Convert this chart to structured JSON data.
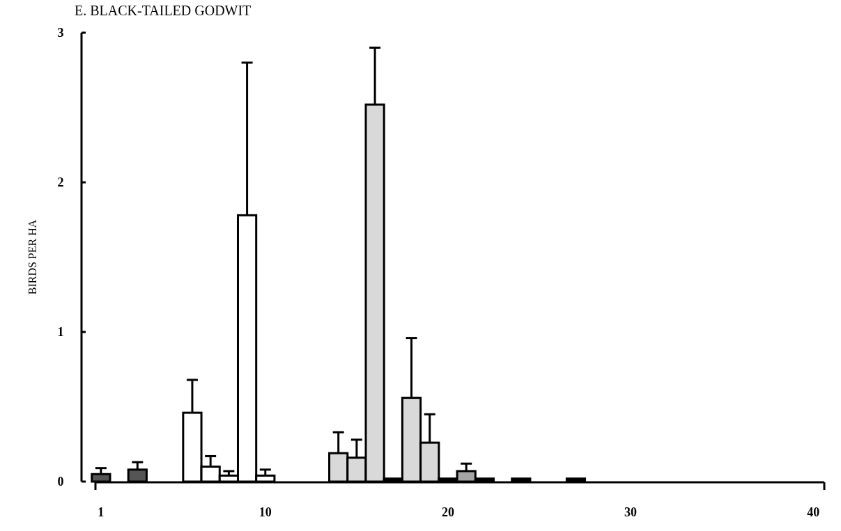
{
  "chart_data": {
    "type": "bar",
    "title": "E. BLACK-TAILED GODWIT",
    "ylabel": "BIRDS PER HA",
    "xlim": [
      0.7,
      40.6
    ],
    "xticks": [
      1,
      10,
      20,
      30,
      40
    ],
    "ylim": [
      0,
      3
    ],
    "yticks": [
      0,
      1,
      2,
      3
    ],
    "grid": false,
    "series": [
      {
        "color": "#555555",
        "x": [
          1,
          3
        ],
        "values": [
          0.05,
          0.08
        ],
        "errors": [
          [
            0.05,
            0.09
          ],
          [
            0.08,
            0.13
          ]
        ]
      },
      {
        "color": "#ffffff",
        "x": [
          6,
          7,
          8,
          9,
          10
        ],
        "values": [
          0.46,
          0.1,
          0.04,
          1.78,
          0.04
        ],
        "errors": [
          [
            0.46,
            0.68
          ],
          [
            0.1,
            0.17
          ],
          [
            0.04,
            0.07
          ],
          [
            1.78,
            2.8
          ],
          [
            0.04,
            0.08
          ]
        ]
      },
      {
        "color": "#d9d9d9",
        "x": [
          14,
          15,
          16,
          18,
          19
        ],
        "values": [
          0.19,
          0.16,
          2.52,
          0.56,
          0.26
        ],
        "errors": [
          [
            0.19,
            0.33
          ],
          [
            0.16,
            0.28
          ],
          [
            2.52,
            2.9
          ],
          [
            0.56,
            0.96
          ],
          [
            0.26,
            0.45
          ]
        ]
      },
      {
        "color": "#000000",
        "x": [
          17,
          20,
          22,
          24,
          27
        ],
        "values": [
          0.02,
          0.02,
          0.02,
          0.02,
          0.02
        ]
      },
      {
        "color": "#a6a6a6",
        "x": [
          21
        ],
        "values": [
          0.07
        ],
        "errors": [
          [
            0.07,
            0.12
          ]
        ]
      }
    ]
  }
}
